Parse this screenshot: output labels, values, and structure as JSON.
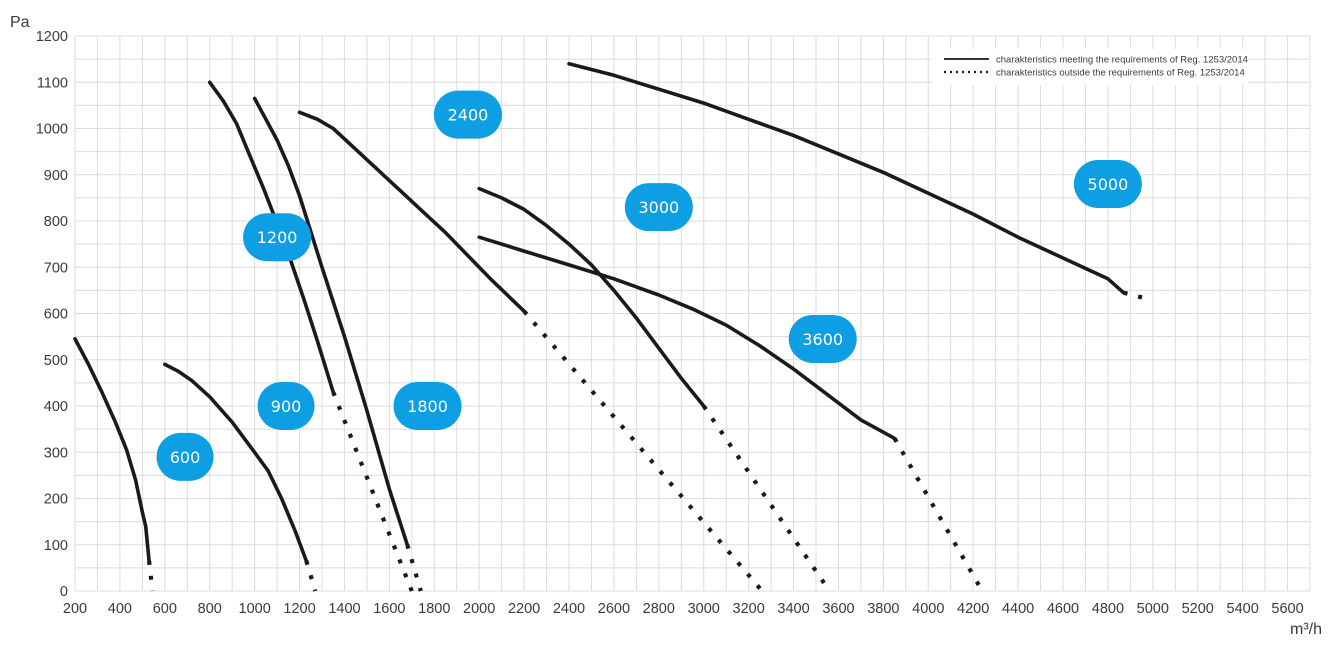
{
  "chart_data": {
    "type": "line",
    "title": "",
    "xlabel": "m³/h",
    "ylabel": "Pa",
    "xlim": [
      200,
      5700
    ],
    "ylim": [
      0,
      1200
    ],
    "x_ticks": [
      "200",
      "400",
      "600",
      "800",
      "1000",
      "1200",
      "1400",
      "1600",
      "1800",
      "2000",
      "2200",
      "2400",
      "2600",
      "2800",
      "3000",
      "3200",
      "3400",
      "3600",
      "3800",
      "4000",
      "4200",
      "4400",
      "4600",
      "4800",
      "5000",
      "5200",
      "5400",
      "5600"
    ],
    "y_ticks": [
      "0",
      "100",
      "200",
      "300",
      "400",
      "500",
      "600",
      "700",
      "800",
      "900",
      "1000",
      "1100",
      "1200"
    ],
    "grid": true,
    "legend_position": "top-right",
    "legend": [
      {
        "style": "solid",
        "label": "charakteristics meeting the requirements of Reg. 1253/2014"
      },
      {
        "style": "dotted",
        "label": "charakteristics outside the requirements of Reg. 1253/2014"
      }
    ],
    "badge_color": "#0d9ee3",
    "series": [
      {
        "label": "600",
        "label_pos": [
          690,
          290
        ],
        "solid": [
          [
            200,
            545
          ],
          [
            260,
            490
          ],
          [
            320,
            430
          ],
          [
            380,
            365
          ],
          [
            430,
            305
          ],
          [
            470,
            240
          ],
          [
            500,
            170
          ],
          [
            515,
            140
          ],
          [
            530,
            65
          ]
        ],
        "dotted": [
          [
            530,
            65
          ],
          [
            545,
            0
          ]
        ]
      },
      {
        "label": "900",
        "label_pos": [
          1140,
          400
        ],
        "solid": [
          [
            600,
            490
          ],
          [
            660,
            475
          ],
          [
            720,
            455
          ],
          [
            800,
            420
          ],
          [
            900,
            365
          ],
          [
            1000,
            300
          ],
          [
            1060,
            260
          ],
          [
            1120,
            200
          ],
          [
            1180,
            130
          ],
          [
            1230,
            65
          ]
        ],
        "dotted": [
          [
            1230,
            65
          ],
          [
            1270,
            0
          ]
        ]
      },
      {
        "label": "1200",
        "label_pos": [
          1100,
          765
        ],
        "solid": [
          [
            800,
            1100
          ],
          [
            860,
            1060
          ],
          [
            920,
            1010
          ],
          [
            980,
            940
          ],
          [
            1040,
            870
          ],
          [
            1100,
            795
          ],
          [
            1160,
            715
          ],
          [
            1220,
            630
          ],
          [
            1280,
            540
          ],
          [
            1350,
            430
          ]
        ],
        "dotted": [
          [
            1350,
            430
          ],
          [
            1700,
            0
          ]
        ]
      },
      {
        "label": "1800",
        "label_pos": [
          1770,
          400
        ],
        "solid": [
          [
            1000,
            1065
          ],
          [
            1050,
            1020
          ],
          [
            1100,
            975
          ],
          [
            1150,
            920
          ],
          [
            1200,
            855
          ],
          [
            1300,
            700
          ],
          [
            1400,
            550
          ],
          [
            1500,
            390
          ],
          [
            1600,
            220
          ],
          [
            1680,
            100
          ]
        ],
        "dotted": [
          [
            1680,
            100
          ],
          [
            1740,
            0
          ]
        ]
      },
      {
        "label": "2400",
        "label_pos": [
          1950,
          1030
        ],
        "solid": [
          [
            1200,
            1035
          ],
          [
            1280,
            1020
          ],
          [
            1350,
            1000
          ],
          [
            1450,
            955
          ],
          [
            1550,
            910
          ],
          [
            1650,
            865
          ],
          [
            1750,
            820
          ],
          [
            1850,
            775
          ],
          [
            1950,
            725
          ],
          [
            2050,
            675
          ],
          [
            2200,
            605
          ]
        ],
        "dotted": [
          [
            2200,
            605
          ],
          [
            3260,
            0
          ]
        ]
      },
      {
        "label": "3000",
        "label_pos": [
          2800,
          830
        ],
        "solid": [
          [
            2000,
            870
          ],
          [
            2100,
            850
          ],
          [
            2200,
            825
          ],
          [
            2300,
            790
          ],
          [
            2400,
            750
          ],
          [
            2500,
            705
          ],
          [
            2600,
            650
          ],
          [
            2700,
            590
          ],
          [
            2800,
            525
          ],
          [
            2900,
            460
          ],
          [
            3000,
            400
          ]
        ],
        "dotted": [
          [
            3000,
            400
          ],
          [
            3560,
            0
          ]
        ]
      },
      {
        "label": "3600",
        "label_pos": [
          3530,
          545
        ],
        "solid": [
          [
            2000,
            765
          ],
          [
            2200,
            735
          ],
          [
            2400,
            705
          ],
          [
            2600,
            675
          ],
          [
            2800,
            640
          ],
          [
            2950,
            610
          ],
          [
            3100,
            575
          ],
          [
            3250,
            530
          ],
          [
            3400,
            480
          ],
          [
            3550,
            425
          ],
          [
            3700,
            370
          ],
          [
            3850,
            330
          ]
        ],
        "dotted": [
          [
            3850,
            330
          ],
          [
            4240,
            0
          ]
        ]
      },
      {
        "label": "5000",
        "label_pos": [
          4800,
          880
        ],
        "solid": [
          [
            2400,
            1140
          ],
          [
            2600,
            1115
          ],
          [
            2800,
            1085
          ],
          [
            3000,
            1055
          ],
          [
            3200,
            1020
          ],
          [
            3400,
            985
          ],
          [
            3600,
            945
          ],
          [
            3800,
            905
          ],
          [
            4000,
            860
          ],
          [
            4200,
            815
          ],
          [
            4400,
            765
          ],
          [
            4600,
            720
          ],
          [
            4800,
            675
          ],
          [
            4870,
            645
          ]
        ],
        "dotted": [
          [
            4870,
            645
          ],
          [
            4990,
            630
          ]
        ]
      }
    ]
  }
}
